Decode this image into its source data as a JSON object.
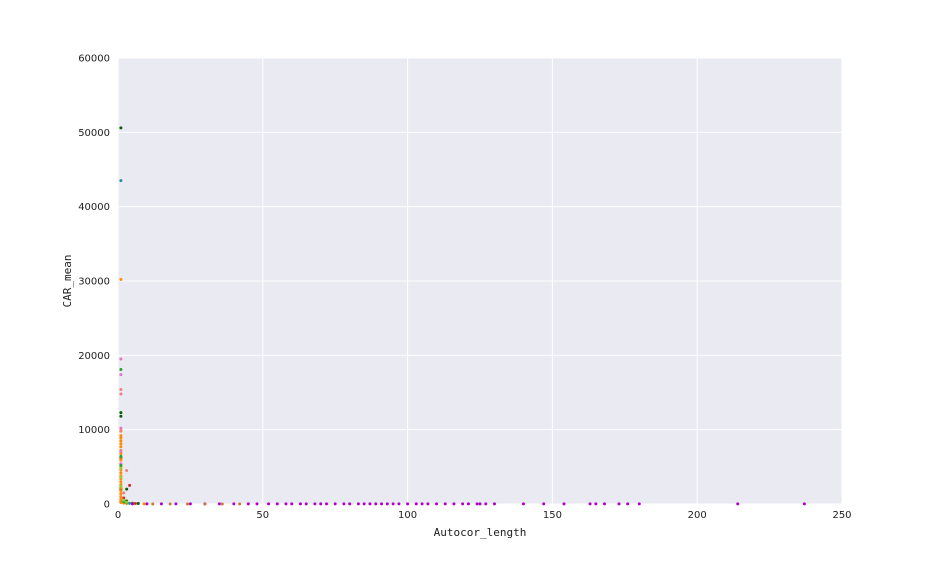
{
  "chart_data": {
    "type": "scatter",
    "xlabel": "Autocor_length",
    "ylabel": "CAR_mean",
    "xlim": [
      0,
      250
    ],
    "ylim": [
      0,
      60000
    ],
    "x_ticks": [
      0,
      50,
      100,
      150,
      200,
      250
    ],
    "y_ticks": [
      0,
      10000,
      20000,
      30000,
      40000,
      50000,
      60000
    ],
    "grid": true,
    "legend": "none",
    "style": {
      "plot_background": "#eaeaf2",
      "grid_color": "#ffffff"
    },
    "series": [
      {
        "color": "#006400",
        "points": [
          [
            1,
            50600
          ],
          [
            1,
            12300
          ],
          [
            1,
            11800
          ],
          [
            1,
            6200
          ],
          [
            1,
            2000
          ],
          [
            3,
            2000
          ],
          [
            3,
            400
          ],
          [
            5,
            100
          ],
          [
            7,
            60
          ]
        ]
      },
      {
        "color": "#1f8fa8",
        "points": [
          [
            1,
            43500
          ],
          [
            1,
            300
          ],
          [
            2,
            150
          ],
          [
            4,
            80
          ]
        ]
      },
      {
        "color": "#ff8c00",
        "points": [
          [
            1,
            30200
          ],
          [
            1,
            9800
          ],
          [
            1,
            9200
          ],
          [
            1,
            8900
          ],
          [
            1,
            8500
          ],
          [
            1,
            8100
          ],
          [
            1,
            7700
          ],
          [
            1,
            7200
          ],
          [
            1,
            6800
          ],
          [
            1,
            6300
          ],
          [
            1,
            5900
          ],
          [
            1,
            5400
          ],
          [
            1,
            5000
          ],
          [
            1,
            4600
          ],
          [
            1,
            4200
          ],
          [
            1,
            3800
          ],
          [
            1,
            3400
          ],
          [
            1,
            3000
          ],
          [
            1,
            2600
          ],
          [
            1,
            2200
          ],
          [
            1,
            1800
          ],
          [
            1,
            1400
          ],
          [
            1,
            1000
          ],
          [
            1,
            600
          ],
          [
            1,
            200
          ],
          [
            2,
            120
          ],
          [
            3,
            80
          ],
          [
            5,
            40
          ],
          [
            9,
            20
          ]
        ]
      },
      {
        "color": "#e377c2",
        "points": [
          [
            1,
            19500
          ],
          [
            1,
            17400
          ],
          [
            1,
            10200
          ],
          [
            1,
            7100
          ],
          [
            1,
            5400
          ]
        ]
      },
      {
        "color": "#2ca02c",
        "points": [
          [
            1,
            18100
          ],
          [
            1,
            6400
          ],
          [
            1,
            5200
          ],
          [
            2,
            300
          ],
          [
            3,
            150
          ]
        ]
      },
      {
        "color": "#f08080",
        "points": [
          [
            1,
            15400
          ],
          [
            1,
            14800
          ],
          [
            1,
            9900
          ],
          [
            3,
            4500
          ],
          [
            2,
            1500
          ]
        ]
      },
      {
        "color": "#d62728",
        "points": [
          [
            4,
            2500
          ],
          [
            2,
            800
          ],
          [
            6,
            60
          ]
        ]
      },
      {
        "color": "#9acd32",
        "points": [
          [
            1,
            4800
          ],
          [
            1,
            3600
          ],
          [
            1,
            2400
          ],
          [
            2,
            500
          ],
          [
            3,
            250
          ]
        ]
      },
      {
        "color": "#b000c8",
        "points": [
          [
            5,
            15
          ],
          [
            10,
            12
          ],
          [
            15,
            10
          ],
          [
            20,
            10
          ],
          [
            25,
            10
          ],
          [
            30,
            10
          ],
          [
            35,
            10
          ],
          [
            40,
            10
          ],
          [
            45,
            10
          ],
          [
            48,
            10
          ],
          [
            52,
            10
          ],
          [
            55,
            10
          ],
          [
            58,
            10
          ],
          [
            60,
            10
          ],
          [
            63,
            10
          ],
          [
            65,
            10
          ],
          [
            68,
            10
          ],
          [
            70,
            10
          ],
          [
            72,
            10
          ],
          [
            75,
            10
          ],
          [
            78,
            10
          ],
          [
            80,
            10
          ],
          [
            83,
            10
          ],
          [
            85,
            10
          ],
          [
            87,
            10
          ],
          [
            89,
            10
          ],
          [
            91,
            10
          ],
          [
            93,
            10
          ],
          [
            95,
            10
          ],
          [
            97,
            10
          ],
          [
            100,
            10
          ],
          [
            103,
            10
          ],
          [
            105,
            10
          ],
          [
            107,
            10
          ],
          [
            110,
            10
          ],
          [
            113,
            10
          ],
          [
            116,
            10
          ],
          [
            119,
            10
          ],
          [
            121,
            10
          ],
          [
            124,
            10
          ],
          [
            125,
            10
          ],
          [
            127,
            10
          ],
          [
            130,
            10
          ],
          [
            140,
            10
          ],
          [
            147,
            10
          ],
          [
            154,
            10
          ],
          [
            163,
            10
          ],
          [
            165,
            10
          ],
          [
            168,
            10
          ],
          [
            173,
            10
          ],
          [
            176,
            10
          ],
          [
            180,
            10
          ],
          [
            214,
            10
          ],
          [
            237,
            10
          ]
        ]
      },
      {
        "color": "#c87832",
        "points": [
          [
            12,
            8
          ],
          [
            18,
            8
          ],
          [
            24,
            8
          ],
          [
            30,
            8
          ],
          [
            36,
            8
          ],
          [
            42,
            8
          ]
        ]
      }
    ]
  }
}
